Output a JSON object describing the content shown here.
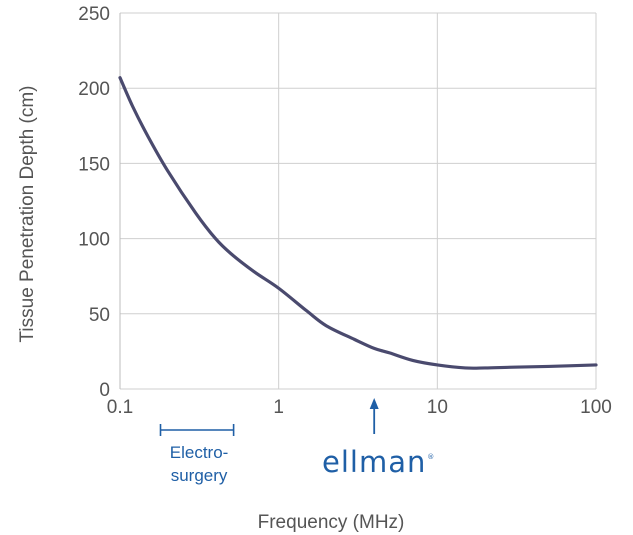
{
  "chart_data": {
    "type": "line",
    "xscale": "log",
    "xlim": [
      0.1,
      100
    ],
    "ylim": [
      0,
      250
    ],
    "grid": true,
    "xlabel": "Frequency (MHz)",
    "ylabel": "Tissue Penetration Depth (cm)",
    "x_ticks": [
      0.1,
      1,
      10,
      100
    ],
    "x_tick_labels": [
      "0.1",
      "1",
      "10",
      "100"
    ],
    "y_ticks": [
      0,
      50,
      100,
      150,
      200,
      250
    ],
    "y_tick_labels": [
      "0",
      "50",
      "100",
      "150",
      "200",
      "250"
    ],
    "series": [
      {
        "color": "#4a4a6e",
        "x": [
          0.1,
          0.12,
          0.15,
          0.2,
          0.3,
          0.4,
          0.5,
          0.7,
          1,
          1.5,
          2,
          3,
          4,
          5,
          7,
          10,
          15,
          20,
          30,
          50,
          100
        ],
        "y": [
          207,
          188,
          168,
          145,
          117,
          100,
          90,
          78,
          67,
          52,
          42,
          33,
          27,
          24,
          19,
          16,
          14,
          14,
          14.5,
          15,
          16
        ]
      }
    ],
    "annotations": {
      "electrosurgery": {
        "range": [
          0.18,
          0.52
        ],
        "label_line1": "Electro-",
        "label_line2": "surgery",
        "color": "#1f5fa6"
      },
      "ellman": {
        "x": 4,
        "label": "ellman",
        "mark": "®",
        "color": "#1f5fa6"
      }
    }
  }
}
